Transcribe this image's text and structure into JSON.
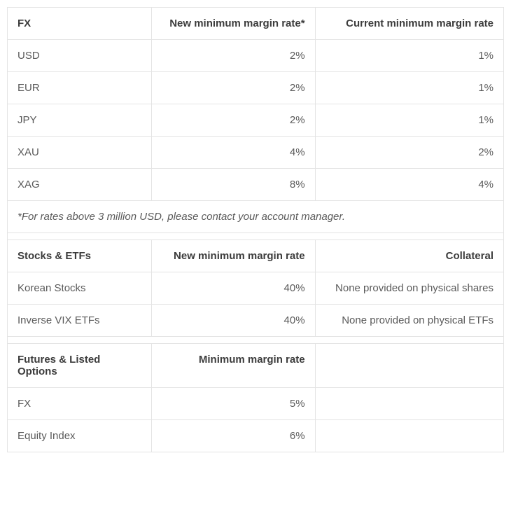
{
  "colors": {
    "border": "#e4e4e4",
    "text": "#5a5a5a",
    "header_text": "#3c3c3c",
    "background": "#ffffff"
  },
  "typography": {
    "font_family": "Segoe UI, Helvetica Neue, Arial, sans-serif",
    "cell_fontsize": 15,
    "header_weight": 700
  },
  "fx_table": {
    "type": "table",
    "columns": [
      "FX",
      "New minimum margin rate*",
      "Current minimum margin rate"
    ],
    "column_align": [
      "left",
      "right",
      "right"
    ],
    "rows": [
      [
        "USD",
        "2%",
        "1%"
      ],
      [
        "EUR",
        "2%",
        "1%"
      ],
      [
        "JPY",
        "2%",
        "1%"
      ],
      [
        "XAU",
        "4%",
        "2%"
      ],
      [
        "XAG",
        "8%",
        "4%"
      ]
    ],
    "footnote": "*For rates above 3 million USD, please contact your account manager."
  },
  "stocks_table": {
    "type": "table",
    "columns": [
      "Stocks & ETFs",
      "New minimum margin rate",
      "Collateral"
    ],
    "column_align": [
      "left",
      "right",
      "right"
    ],
    "rows": [
      [
        "Korean Stocks",
        "40%",
        "None provided on physical shares"
      ],
      [
        "Inverse VIX ETFs",
        "40%",
        "None provided on physical ETFs"
      ]
    ]
  },
  "futures_table": {
    "type": "table",
    "columns": [
      "Futures & Listed Options",
      "Minimum margin rate",
      ""
    ],
    "column_align": [
      "left",
      "right",
      "right"
    ],
    "rows": [
      [
        "FX",
        "5%",
        ""
      ],
      [
        "Equity Index",
        "6%",
        ""
      ]
    ]
  }
}
